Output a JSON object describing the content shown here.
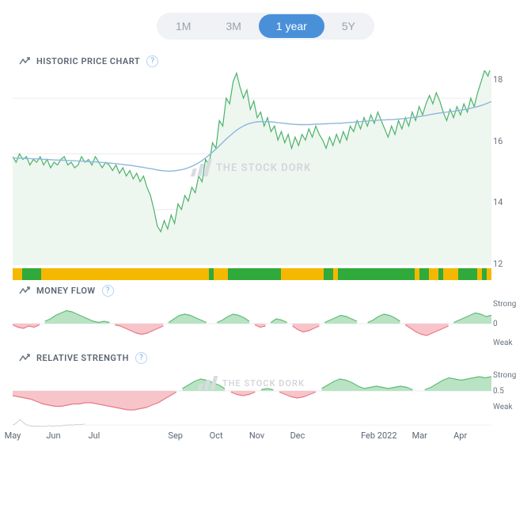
{
  "range_selector": {
    "options": [
      "1M",
      "3M",
      "1 year",
      "5Y"
    ],
    "active_index": 2
  },
  "sections": {
    "price": {
      "title": "HISTORIC PRICE CHART"
    },
    "money_flow": {
      "title": "MONEY FLOW"
    },
    "relative_strength": {
      "title": "RELATIVE STRENGTH"
    }
  },
  "watermark_text": "THE STOCK DORK",
  "price_chart": {
    "type": "line-with-ma",
    "ylim": [
      12,
      19
    ],
    "yticks": [
      12,
      14,
      16,
      18
    ],
    "background_color": "#ffffff",
    "grid_color": "#e8ebef",
    "price_line_color": "#4cb36a",
    "price_line_width": 1.2,
    "price_area_color": "#eef6f0",
    "ma_line_color": "#8cb8de",
    "ma_line_width": 1.4,
    "price_series": [
      15.9,
      15.7,
      16.0,
      15.8,
      15.9,
      15.6,
      15.8,
      15.7,
      15.9,
      15.6,
      15.8,
      15.5,
      15.7,
      15.6,
      15.8,
      15.9,
      15.6,
      15.7,
      15.5,
      15.6,
      15.9,
      15.7,
      15.8,
      15.6,
      15.9,
      15.7,
      15.5,
      15.7,
      15.6,
      15.4,
      15.6,
      15.3,
      15.5,
      15.2,
      15.4,
      15.1,
      15.3,
      15.0,
      15.2,
      14.8,
      14.5,
      14.0,
      13.4,
      13.2,
      13.6,
      13.3,
      13.8,
      13.5,
      14.2,
      14.0,
      14.5,
      14.3,
      14.8,
      14.6,
      15.2,
      15.0,
      15.8,
      15.6,
      16.4,
      16.2,
      17.2,
      17.0,
      18.0,
      17.8,
      18.6,
      18.9,
      18.4,
      18.0,
      18.3,
      17.6,
      17.9,
      17.3,
      17.5,
      17.0,
      17.3,
      16.8,
      17.0,
      16.5,
      16.8,
      16.4,
      16.7,
      16.2,
      16.6,
      16.3,
      16.7,
      16.5,
      16.9,
      16.6,
      17.0,
      16.7,
      16.5,
      16.2,
      16.6,
      16.3,
      16.7,
      16.4,
      16.8,
      16.5,
      17.0,
      16.8,
      17.2,
      16.9,
      17.3,
      17.0,
      17.4,
      17.1,
      17.5,
      17.2,
      16.9,
      16.6,
      17.0,
      16.7,
      17.2,
      16.9,
      17.3,
      17.0,
      17.5,
      17.2,
      17.7,
      17.4,
      17.8,
      18.1,
      17.8,
      18.2,
      17.9,
      17.5,
      17.2,
      17.6,
      17.3,
      17.7,
      17.4,
      17.8,
      17.5,
      18.0,
      17.7,
      18.2,
      18.6,
      19.0,
      18.8,
      19.2
    ],
    "ma_series": [
      15.85,
      15.85,
      15.84,
      15.84,
      15.83,
      15.83,
      15.82,
      15.82,
      15.81,
      15.8,
      15.8,
      15.79,
      15.78,
      15.78,
      15.77,
      15.77,
      15.76,
      15.76,
      15.75,
      15.74,
      15.74,
      15.73,
      15.72,
      15.72,
      15.71,
      15.7,
      15.69,
      15.68,
      15.67,
      15.66,
      15.65,
      15.63,
      15.62,
      15.6,
      15.59,
      15.57,
      15.55,
      15.53,
      15.51,
      15.49,
      15.47,
      15.45,
      15.42,
      15.4,
      15.39,
      15.38,
      15.38,
      15.39,
      15.41,
      15.43,
      15.46,
      15.5,
      15.55,
      15.61,
      15.68,
      15.76,
      15.85,
      15.95,
      16.06,
      16.17,
      16.29,
      16.41,
      16.53,
      16.64,
      16.75,
      16.85,
      16.93,
      17.0,
      17.06,
      17.1,
      17.13,
      17.15,
      17.16,
      17.16,
      17.16,
      17.15,
      17.14,
      17.12,
      17.11,
      17.1,
      17.08,
      17.07,
      17.06,
      17.05,
      17.05,
      17.05,
      17.05,
      17.06,
      17.07,
      17.07,
      17.08,
      17.08,
      17.09,
      17.09,
      17.1,
      17.1,
      17.11,
      17.12,
      17.13,
      17.14,
      17.15,
      17.16,
      17.17,
      17.18,
      17.19,
      17.2,
      17.21,
      17.22,
      17.22,
      17.23,
      17.23,
      17.24,
      17.25,
      17.26,
      17.27,
      17.29,
      17.3,
      17.32,
      17.34,
      17.36,
      17.38,
      17.41,
      17.43,
      17.45,
      17.47,
      17.49,
      17.5,
      17.52,
      17.53,
      17.55,
      17.57,
      17.59,
      17.61,
      17.64,
      17.67,
      17.7,
      17.74,
      17.78,
      17.83,
      17.88
    ]
  },
  "color_strip": {
    "green": "#2faa3b",
    "yellow": "#f5b800",
    "segments": [
      {
        "c": "y",
        "w": 2
      },
      {
        "c": "g",
        "w": 4
      },
      {
        "c": "y",
        "w": 35
      },
      {
        "c": "g",
        "w": 1
      },
      {
        "c": "y",
        "w": 3
      },
      {
        "c": "g",
        "w": 11
      },
      {
        "c": "y",
        "w": 9
      },
      {
        "c": "g",
        "w": 2
      },
      {
        "c": "y",
        "w": 1
      },
      {
        "c": "g",
        "w": 16
      },
      {
        "c": "y",
        "w": 1
      },
      {
        "c": "g",
        "w": 2
      },
      {
        "c": "y",
        "w": 2
      },
      {
        "c": "g",
        "w": 1
      },
      {
        "c": "y",
        "w": 3
      },
      {
        "c": "g",
        "w": 4
      },
      {
        "c": "y",
        "w": 1
      },
      {
        "c": "g",
        "w": 1
      },
      {
        "c": "y",
        "w": 1
      }
    ]
  },
  "money_flow": {
    "type": "area-oscillator",
    "labels": [
      "Strong",
      "0",
      "Weak"
    ],
    "pos_fill": "#b9e3c3",
    "pos_stroke": "#5fbc77",
    "neg_fill": "#f7c4c9",
    "neg_stroke": "#e57b87",
    "series": [
      -0.05,
      -0.15,
      -0.2,
      -0.1,
      -0.15,
      -0.05,
      0.1,
      0.2,
      0.35,
      0.45,
      0.55,
      0.5,
      0.4,
      0.3,
      0.2,
      0.1,
      0.05,
      0.1,
      0.05,
      -0.05,
      -0.1,
      -0.2,
      -0.3,
      -0.4,
      -0.45,
      -0.4,
      -0.3,
      -0.2,
      -0.1,
      0.05,
      0.2,
      0.35,
      0.4,
      0.35,
      0.25,
      0.15,
      0.05,
      -0.05,
      0.05,
      0.15,
      0.3,
      0.4,
      0.35,
      0.25,
      0.1,
      -0.05,
      -0.15,
      -0.1,
      0.05,
      0.2,
      0.15,
      0.05,
      -0.1,
      -0.25,
      -0.35,
      -0.3,
      -0.2,
      -0.1,
      0.05,
      0.15,
      0.25,
      0.35,
      0.3,
      0.2,
      0.1,
      -0.05,
      0.05,
      0.15,
      0.3,
      0.4,
      0.35,
      0.25,
      0.1,
      -0.05,
      -0.2,
      -0.35,
      -0.45,
      -0.5,
      -0.4,
      -0.3,
      -0.2,
      -0.1,
      0.05,
      0.15,
      0.25,
      0.35,
      0.45,
      0.4,
      0.3,
      0.35
    ]
  },
  "relative_strength": {
    "type": "area-oscillator",
    "labels": [
      "Strong",
      "0.5",
      "Weak"
    ],
    "pos_fill": "#b9e3c3",
    "pos_stroke": "#5fbc77",
    "neg_fill": "#f7c4c9",
    "neg_stroke": "#e57b87",
    "series": [
      -0.2,
      -0.25,
      -0.3,
      -0.35,
      -0.45,
      -0.55,
      -0.6,
      -0.65,
      -0.65,
      -0.6,
      -0.55,
      -0.55,
      -0.5,
      -0.5,
      -0.55,
      -0.6,
      -0.65,
      -0.7,
      -0.75,
      -0.8,
      -0.8,
      -0.75,
      -0.7,
      -0.6,
      -0.5,
      -0.35,
      -0.2,
      -0.05,
      0.1,
      0.25,
      0.4,
      0.5,
      0.45,
      0.35,
      0.25,
      0.1,
      -0.05,
      -0.15,
      -0.2,
      -0.15,
      -0.05,
      0.05,
      0.1,
      0.05,
      -0.05,
      -0.15,
      -0.25,
      -0.3,
      -0.25,
      -0.15,
      -0.05,
      0.1,
      0.25,
      0.4,
      0.5,
      0.45,
      0.35,
      0.2,
      0.1,
      0.15,
      0.2,
      0.15,
      0.1,
      0.15,
      0.2,
      0.15,
      0.05,
      -0.05,
      0.05,
      0.15,
      0.3,
      0.45,
      0.55,
      0.5,
      0.45,
      0.5,
      0.55,
      0.6,
      0.55,
      0.6
    ]
  },
  "x_axis": {
    "ticks": [
      {
        "label": "May",
        "pos": 0.0
      },
      {
        "label": "Jun",
        "pos": 0.085
      },
      {
        "label": "Jul",
        "pos": 0.17
      },
      {
        "label": "Sep",
        "pos": 0.34
      },
      {
        "label": "Oct",
        "pos": 0.425
      },
      {
        "label": "Nov",
        "pos": 0.51
      },
      {
        "label": "Dec",
        "pos": 0.595
      },
      {
        "label": "Feb 2022",
        "pos": 0.765
      },
      {
        "label": "Mar",
        "pos": 0.85
      },
      {
        "label": "Apr",
        "pos": 0.935
      }
    ]
  },
  "nav_sparkline": {
    "stroke": "#c8cfd6",
    "series": [
      0.2,
      0.3,
      0.5,
      0.7,
      0.5,
      0.3,
      0.2,
      0.15,
      0.1,
      0.1,
      0.12,
      0.1,
      0.08,
      0.1,
      0.12,
      0.15,
      0.1,
      0.12,
      0.15,
      0.12,
      0.15,
      0.18,
      0.2,
      0.22,
      0.2,
      0.22,
      0.25,
      0.22,
      0.25,
      0.3
    ]
  }
}
